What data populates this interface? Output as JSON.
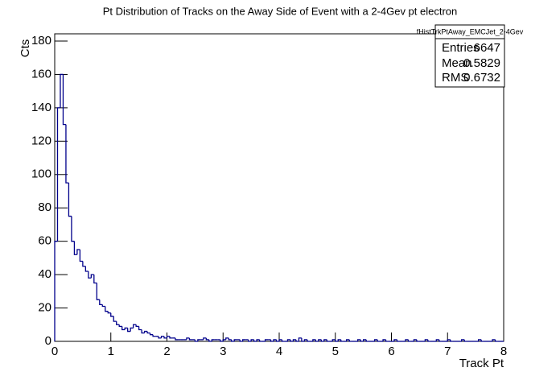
{
  "chart_data": {
    "type": "histogram",
    "title": "Pt Distribution of Tracks on the Away Side of Event with a 2-4Gev pt electron",
    "x_label": "Track Pt",
    "y_label": "Cts",
    "color": "#00008b",
    "xlim": [
      0,
      8
    ],
    "ylim": [
      0,
      180
    ],
    "xticks": [
      0,
      1,
      2,
      3,
      4,
      5,
      6,
      7,
      8
    ],
    "yticks": [
      0,
      20,
      40,
      60,
      80,
      100,
      120,
      140,
      160,
      180
    ],
    "bins": [
      0,
      0.05,
      0.1,
      0.15,
      0.2,
      0.25,
      0.3,
      0.35,
      0.4,
      0.45,
      0.5,
      0.55,
      0.6,
      0.65,
      0.7,
      0.75,
      0.8,
      0.85,
      0.9,
      0.95,
      1,
      1.05,
      1.1,
      1.15,
      1.2,
      1.25,
      1.3,
      1.35,
      1.4,
      1.45,
      1.5,
      1.55,
      1.6,
      1.65,
      1.7,
      1.75,
      1.8,
      1.85,
      1.9,
      1.95,
      2,
      2.05,
      2.1,
      2.15,
      2.2,
      2.25,
      2.3,
      2.35,
      2.4,
      2.45,
      2.5,
      2.55,
      2.6,
      2.65,
      2.7,
      2.75,
      2.8,
      2.85,
      2.9,
      2.95,
      3,
      3.05,
      3.1,
      3.15,
      3.2,
      3.25,
      3.3,
      3.35,
      3.4,
      3.45,
      3.5,
      3.55,
      3.6,
      3.65,
      3.7,
      3.75,
      3.8,
      3.85,
      3.9,
      3.95,
      4,
      4.05,
      4.1,
      4.15,
      4.2,
      4.25,
      4.3,
      4.35,
      4.4,
      4.45,
      4.5,
      4.55,
      4.6,
      4.65,
      4.7,
      4.75,
      4.8,
      4.85,
      4.9,
      4.95,
      5,
      5.05,
      5.1,
      5.15,
      5.2,
      5.25,
      5.3,
      5.35,
      5.4,
      5.45,
      5.5,
      5.55,
      5.6,
      5.65,
      5.7,
      5.75,
      5.8,
      5.85,
      5.9,
      5.95,
      6,
      6.05,
      6.1,
      6.15,
      6.2,
      6.25,
      6.3,
      6.35,
      6.4,
      6.45,
      6.5,
      6.55,
      6.6,
      6.65,
      6.7,
      6.75,
      6.8,
      6.85,
      6.9,
      6.95,
      7,
      7.05,
      7.1,
      7.15,
      7.2,
      7.25,
      7.3,
      7.35,
      7.4,
      7.45,
      7.5,
      7.55,
      7.6,
      7.65,
      7.7,
      7.75,
      7.8,
      7.85,
      7.9,
      7.95,
      8
    ],
    "values": [
      60,
      140,
      160,
      130,
      95,
      75,
      60,
      52,
      55,
      48,
      45,
      42,
      38,
      40,
      35,
      25,
      22,
      21,
      18,
      17,
      15,
      12,
      10,
      9,
      7,
      8,
      6,
      8,
      10,
      9,
      7,
      5,
      6,
      5,
      4,
      3,
      3,
      2,
      3,
      2,
      3,
      2,
      2,
      1,
      1,
      1,
      1,
      2,
      1,
      1,
      0,
      1,
      1,
      2,
      1,
      0,
      1,
      1,
      1,
      0,
      1,
      2,
      1,
      0,
      1,
      1,
      0,
      1,
      1,
      0,
      1,
      0,
      1,
      0,
      0,
      1,
      1,
      0,
      1,
      0,
      1,
      0,
      0,
      1,
      0,
      1,
      0,
      2,
      0,
      1,
      0,
      0,
      1,
      0,
      1,
      0,
      1,
      0,
      0,
      1,
      0,
      1,
      0,
      0,
      1,
      0,
      0,
      0,
      1,
      0,
      1,
      0,
      0,
      0,
      1,
      0,
      0,
      1,
      0,
      0,
      0,
      1,
      0,
      0,
      0,
      1,
      0,
      0,
      1,
      0,
      0,
      0,
      1,
      0,
      0,
      0,
      1,
      0,
      0,
      0,
      1,
      0,
      0,
      0,
      0,
      1,
      0,
      0,
      0,
      0,
      0,
      1,
      0,
      0,
      0,
      0,
      1,
      0,
      0,
      0
    ],
    "stats": {
      "title": "fHistTrkPtAway_EMCJet_2-4Gev",
      "rows": [
        {
          "label": "Entries",
          "value": 6647
        },
        {
          "label": "Mean",
          "value": 0.5829
        },
        {
          "label": "RMS",
          "value": 0.6732
        }
      ]
    }
  }
}
